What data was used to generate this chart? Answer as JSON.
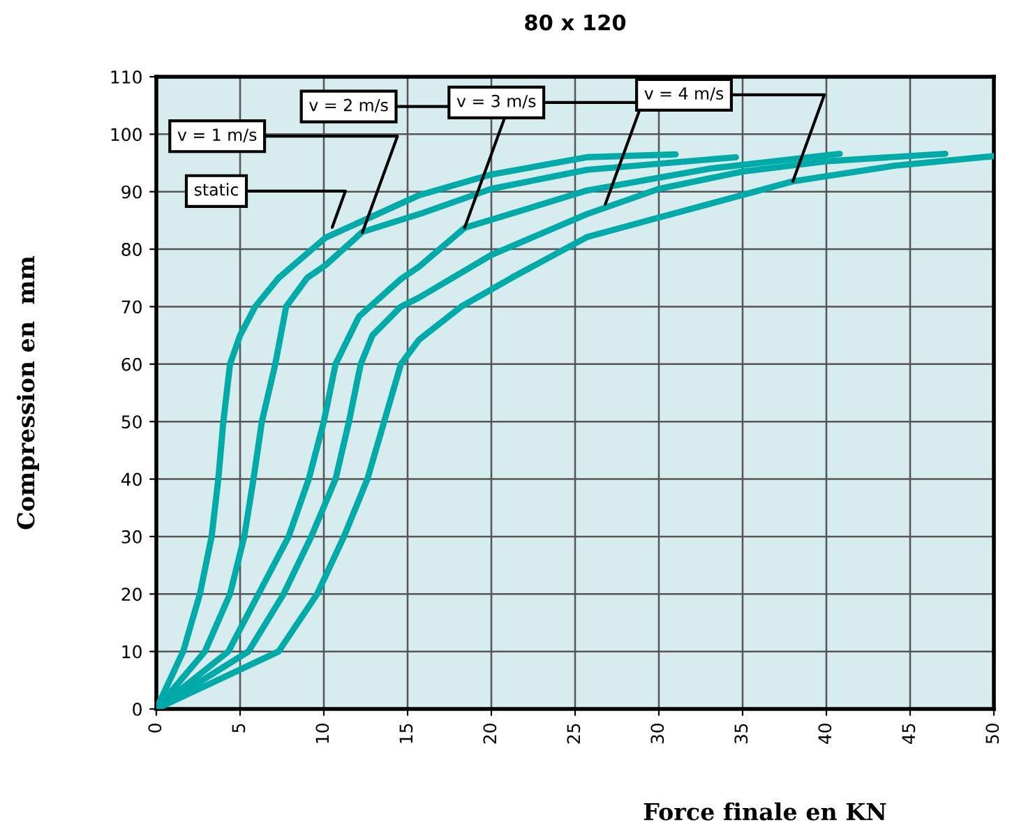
{
  "chart_data": {
    "type": "line",
    "title": "80 x 120",
    "xlabel": "Force finale en KN",
    "ylabel": "Compression en  mm",
    "xlim": [
      0,
      50
    ],
    "xticks": [
      0,
      5,
      10,
      15,
      20,
      25,
      30,
      35,
      40,
      45,
      50
    ],
    "ylim": [
      0,
      110
    ],
    "yticks": [
      0,
      10,
      20,
      30,
      40,
      50,
      60,
      70,
      80,
      90,
      100,
      110
    ],
    "grid": true,
    "legend": false,
    "marker": "none",
    "line_style": "solid",
    "series": [
      {
        "color": "#00aaa8",
        "x": [
          0,
          1.6,
          2.6,
          3.3,
          3.7,
          4.0,
          4.4,
          5.0,
          5.9,
          7.3,
          10.1,
          15.7,
          20,
          25.7,
          31
        ],
        "values": [
          0,
          10,
          20,
          30,
          40,
          50,
          60,
          65,
          70,
          75,
          82,
          89.4,
          93,
          96,
          96.5
        ]
      },
      {
        "color": "#00aaa8",
        "x": [
          0,
          2.9,
          4.4,
          5.25,
          5.8,
          6.3,
          7.1,
          7.75,
          9.0,
          10.1,
          12.3,
          15.7,
          20,
          25.7,
          34.6
        ],
        "values": [
          0,
          10,
          20,
          30,
          40,
          50,
          60,
          70,
          75,
          77.2,
          83,
          86.1,
          90.5,
          93.8,
          96
        ]
      },
      {
        "color": "#00aaa8",
        "x": [
          0,
          4.3,
          6.1,
          7.9,
          9.1,
          10.0,
          10.7,
          12.1,
          14.6,
          15.7,
          18.4,
          25.7,
          33,
          40.8
        ],
        "values": [
          0,
          10,
          20,
          30,
          40,
          50,
          60,
          68.3,
          74.8,
          77,
          83.7,
          90.2,
          94,
          96.6
        ]
      },
      {
        "color": "#00aaa8",
        "x": [
          0,
          5.5,
          7.6,
          9.25,
          10.7,
          11.5,
          12.2,
          12.9,
          14.6,
          15.7,
          20,
          25.7,
          30,
          35,
          40,
          47.1
        ],
        "values": [
          0,
          10,
          20,
          30,
          40,
          50,
          60,
          65,
          70,
          71.6,
          79,
          86.1,
          90.5,
          93.5,
          95.3,
          96.6
        ]
      },
      {
        "color": "#00aaa8",
        "x": [
          0,
          7.3,
          9.6,
          11.2,
          12.6,
          13.6,
          14.6,
          15.7,
          18.2,
          21.2,
          25.7,
          30,
          38,
          44,
          50
        ],
        "values": [
          0,
          10,
          20,
          30,
          40,
          50,
          60,
          64.3,
          70,
          75,
          82.1,
          85.5,
          91.8,
          94.5,
          96.2
        ]
      }
    ],
    "annotations": [
      {
        "text": "static",
        "x": 10.5,
        "y": 83.8
      },
      {
        "text": "v = 1 m/s",
        "x": 12.3,
        "y": 82.9
      },
      {
        "text": "v = 2 m/s",
        "x": 18.4,
        "y": 83.7
      },
      {
        "text": "v = 3 m/s",
        "x": 26.8,
        "y": 87.8
      },
      {
        "text": "v = 4 m/s",
        "x": 38,
        "y": 91.8
      }
    ]
  }
}
